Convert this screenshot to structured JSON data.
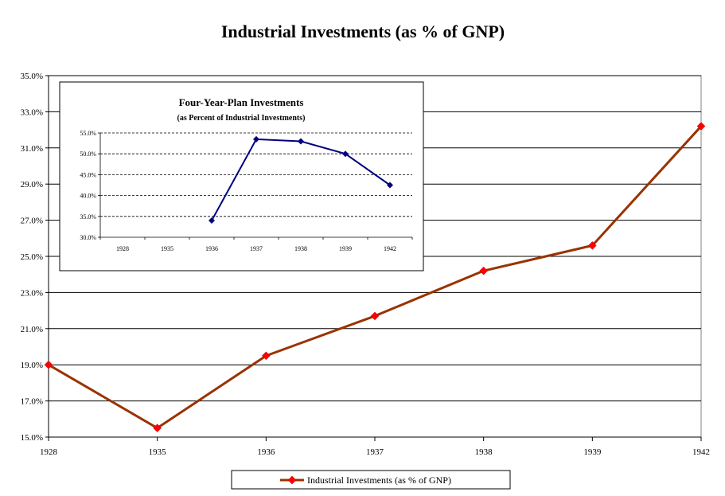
{
  "chart_data": [
    {
      "type": "line",
      "title": "Industrial Investments (as % of GNP)",
      "categories": [
        "1928",
        "1935",
        "1936",
        "1937",
        "1938",
        "1939",
        "1942"
      ],
      "series": [
        {
          "name": "Industrial Investments (as % of GNP)",
          "values": [
            19.0,
            15.5,
            19.5,
            21.7,
            24.2,
            25.6,
            32.2
          ],
          "color": "#993300",
          "marker_color": "#ff0000"
        }
      ],
      "yticks": [
        "15.0%",
        "17.0%",
        "19.0%",
        "21.0%",
        "23.0%",
        "25.0%",
        "27.0%",
        "29.0%",
        "31.0%",
        "33.0%",
        "35.0%"
      ],
      "ylim": [
        15,
        35
      ],
      "xlabel": "",
      "ylabel": "",
      "legend": "bottom"
    },
    {
      "type": "line",
      "title": "Four-Year-Plan Investments",
      "subtitle": "(as Percent of Industrial Investments)",
      "categories": [
        "1928",
        "1935",
        "1936",
        "1937",
        "1938",
        "1939",
        "1942"
      ],
      "series": [
        {
          "name": "Four-Year-Plan Investments",
          "values": [
            null,
            null,
            34.0,
            53.5,
            53.0,
            50.0,
            42.5
          ],
          "color": "#000080"
        }
      ],
      "yticks": [
        "30.0%",
        "35.0%",
        "40.0%",
        "45.0%",
        "50.0%",
        "55.0%"
      ],
      "ylim": [
        30,
        55
      ],
      "legend": "none"
    }
  ]
}
